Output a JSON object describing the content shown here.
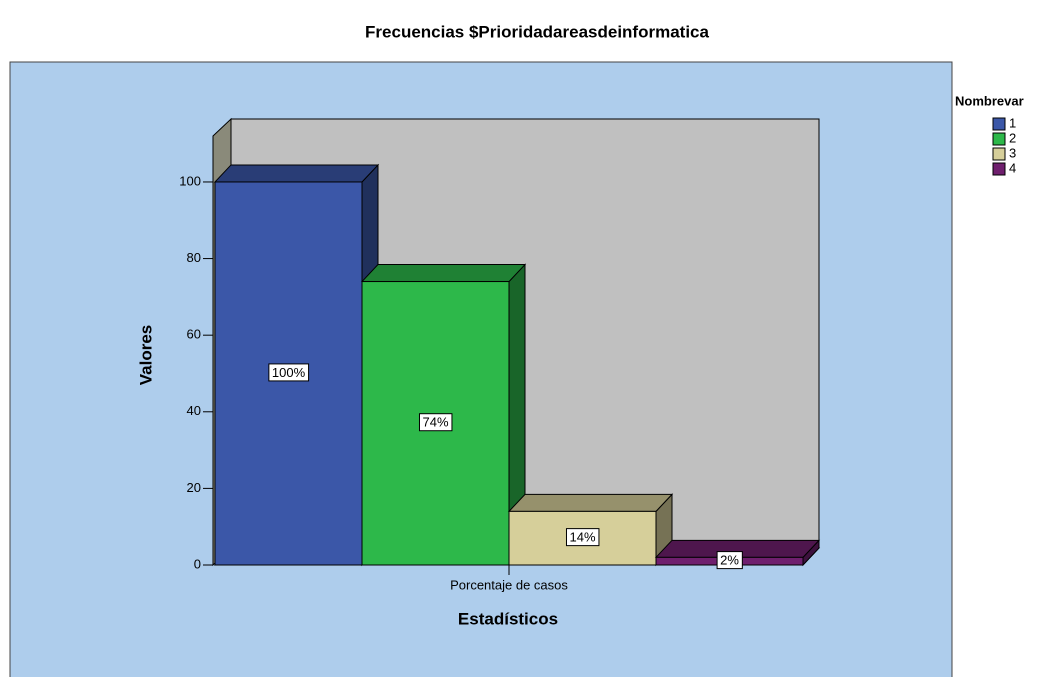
{
  "chart_data": {
    "type": "bar3d",
    "title": "Frecuencias $Prioridadareasdeinformatica",
    "x_label": "Estadísticos",
    "y_label": "Valores",
    "categories": [
      "Porcentaje de casos"
    ],
    "legend_title": "Nombrevar",
    "legend_position": "right",
    "series": [
      {
        "name": "1",
        "color": "#3b57a8",
        "values": [
          100
        ],
        "value_labels": [
          "100%"
        ]
      },
      {
        "name": "2",
        "color": "#2db84a",
        "values": [
          74
        ],
        "value_labels": [
          "74%"
        ]
      },
      {
        "name": "3",
        "color": "#d6cf9a",
        "values": [
          14
        ],
        "value_labels": [
          "14%"
        ]
      },
      {
        "name": "4",
        "color": "#6f1f6e",
        "values": [
          2
        ],
        "value_labels": [
          "2%"
        ]
      }
    ],
    "ylim": [
      0,
      112
    ],
    "yticks": [
      0,
      20,
      40,
      60,
      80,
      100
    ]
  }
}
